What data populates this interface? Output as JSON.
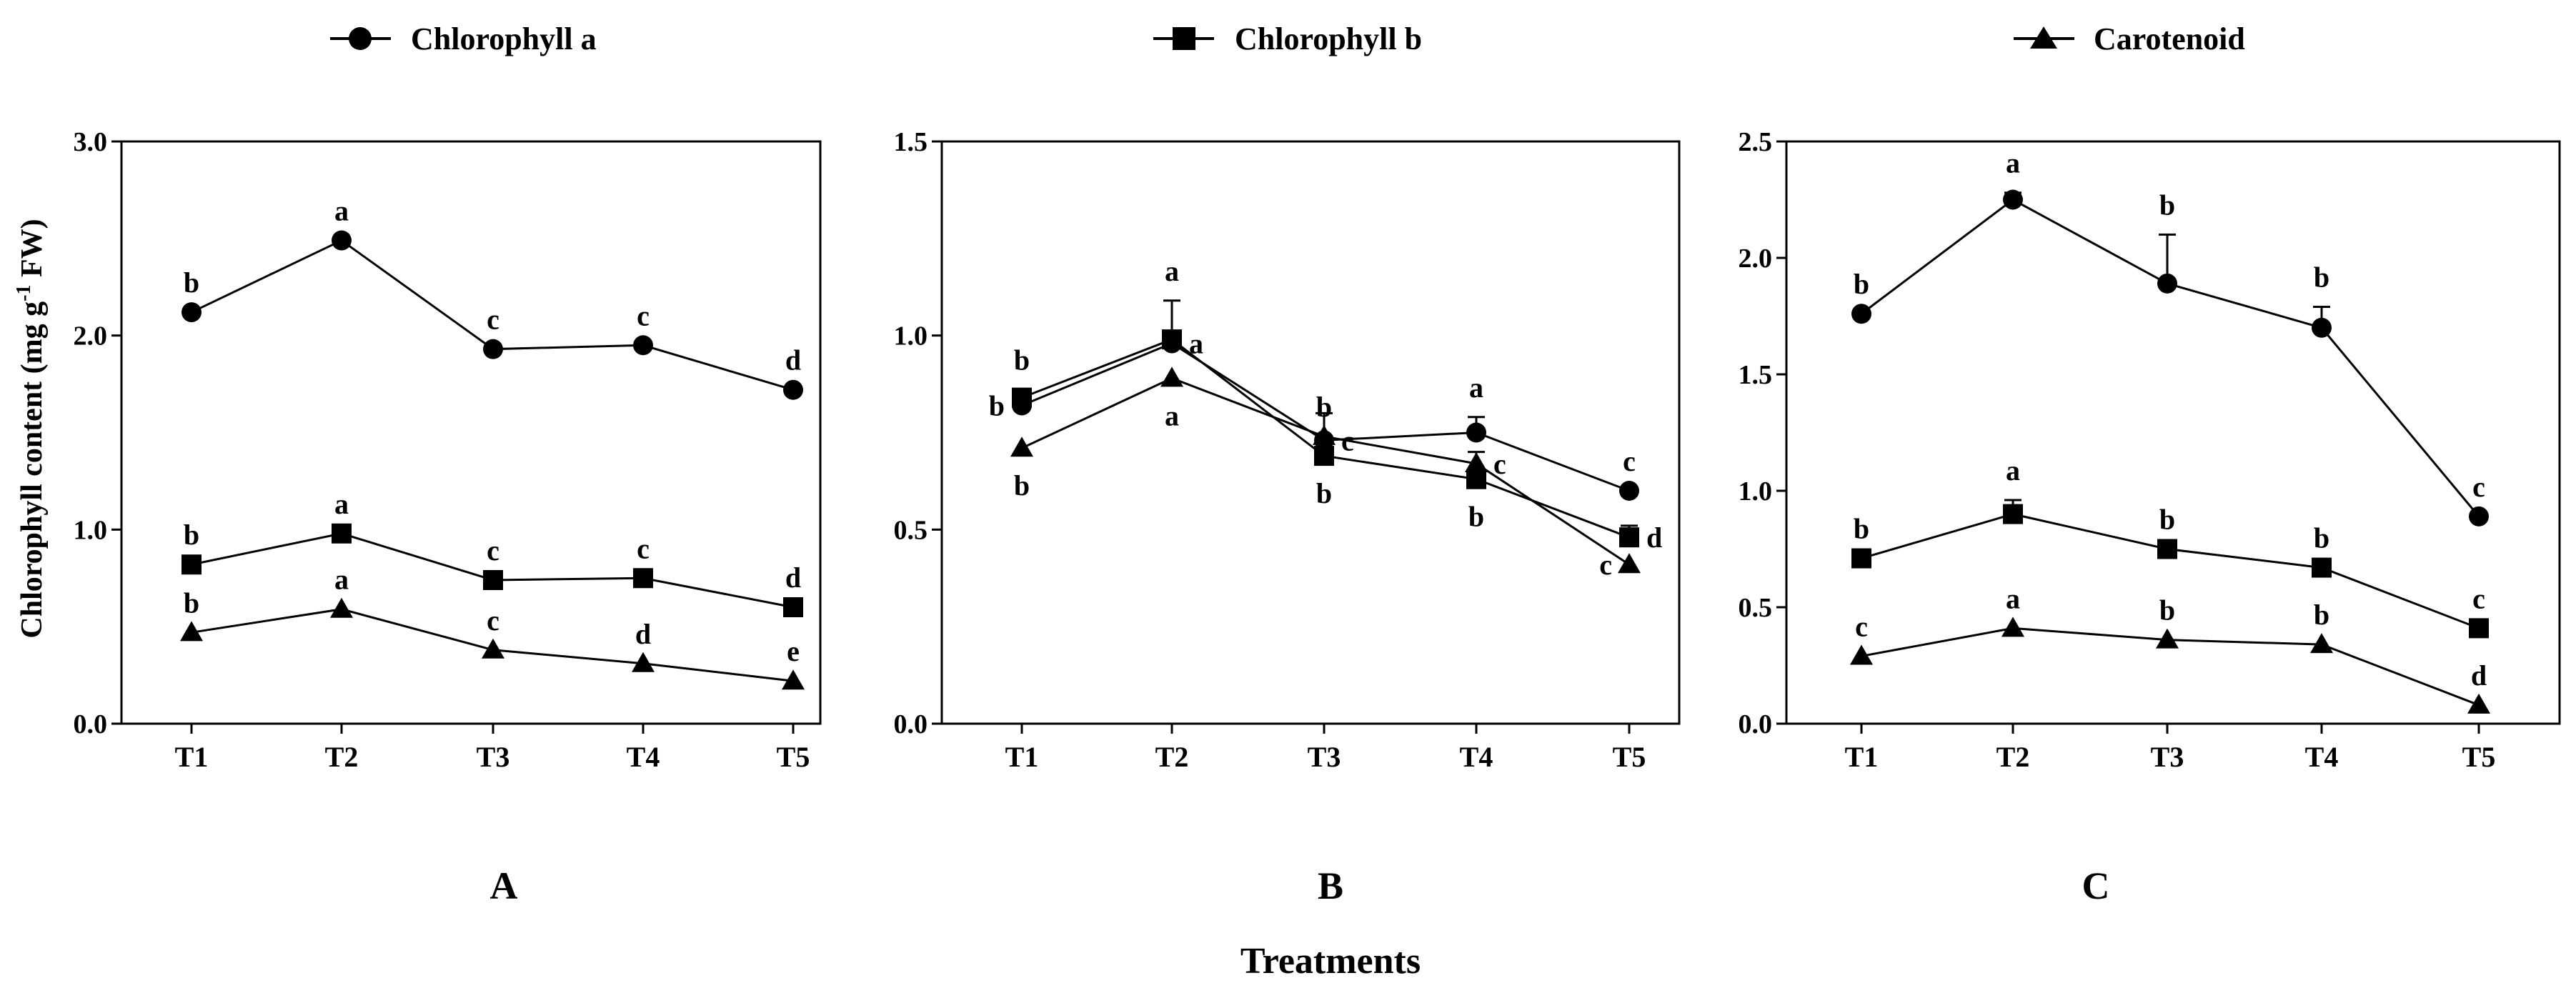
{
  "legend": [
    {
      "name": "Chlorophyll a",
      "marker": "circle"
    },
    {
      "name": "Chlorophyll b",
      "marker": "square"
    },
    {
      "name": "Carotenoid",
      "marker": "triangle"
    }
  ],
  "ylabel_main": "Chlorophyll content (mg g",
  "ylabel_sup": "-1",
  "ylabel_tail": " FW)",
  "xlabel": "Treatments",
  "chart_data": [
    {
      "type": "line",
      "panel": "A",
      "categories": [
        "T1",
        "T2",
        "T3",
        "T4",
        "T5"
      ],
      "ylim": [
        0,
        3.0
      ],
      "yticks": [
        "0.0",
        "1.0",
        "2.0",
        "3.0"
      ],
      "ytick_values": [
        0,
        1,
        2,
        3
      ],
      "series": [
        {
          "name": "Chlorophyll a",
          "marker": "circle",
          "values": [
            2.12,
            2.49,
            1.93,
            1.95,
            1.72
          ],
          "errors": [
            0,
            0,
            0,
            0,
            0
          ],
          "letters": [
            "b",
            "a",
            "c",
            "c",
            "d"
          ],
          "letter_pos": [
            "above",
            "above",
            "above",
            "above",
            "above"
          ]
        },
        {
          "name": "Chlorophyll b",
          "marker": "square",
          "values": [
            0.82,
            0.98,
            0.74,
            0.75,
            0.6
          ],
          "errors": [
            0,
            0,
            0,
            0,
            0
          ],
          "letters": [
            "b",
            "a",
            "c",
            "c",
            "d"
          ],
          "letter_pos": [
            "above",
            "above",
            "above",
            "above",
            "above"
          ]
        },
        {
          "name": "Carotenoid",
          "marker": "triangle",
          "values": [
            0.47,
            0.59,
            0.38,
            0.31,
            0.22
          ],
          "errors": [
            0,
            0,
            0,
            0,
            0
          ],
          "letters": [
            "b",
            "a",
            "c",
            "d",
            "e"
          ],
          "letter_pos": [
            "above",
            "above",
            "above",
            "above",
            "above"
          ]
        }
      ]
    },
    {
      "type": "line",
      "panel": "B",
      "categories": [
        "T1",
        "T2",
        "T3",
        "T4",
        "T5"
      ],
      "ylim": [
        0,
        1.5
      ],
      "yticks": [
        "0.0",
        "0.5",
        "1.0",
        "1.5"
      ],
      "ytick_values": [
        0,
        0.5,
        1.0,
        1.5
      ],
      "series": [
        {
          "name": "Chlorophyll a",
          "marker": "circle",
          "values": [
            0.82,
            0.98,
            0.73,
            0.75,
            0.6
          ],
          "errors": [
            0,
            0,
            0.07,
            0.04,
            0
          ],
          "letters": [
            "b",
            "a",
            "c",
            "a",
            "c"
          ],
          "letter_pos": [
            "left",
            "right",
            "right",
            "above",
            "above"
          ]
        },
        {
          "name": "Chlorophyll b",
          "marker": "square",
          "values": [
            0.84,
            0.99,
            0.69,
            0.63,
            0.48
          ],
          "errors": [
            0.02,
            0.1,
            0,
            0,
            0.03
          ],
          "letters": [
            "b",
            "a",
            "b",
            "b",
            "d"
          ],
          "letter_pos": [
            "above",
            "above",
            "below",
            "below",
            "right"
          ]
        },
        {
          "name": "Carotenoid",
          "marker": "triangle",
          "values": [
            0.71,
            0.89,
            0.74,
            0.67,
            0.41
          ],
          "errors": [
            0,
            0,
            0,
            0.03,
            0
          ],
          "letters": [
            "b",
            "a",
            "b",
            "c",
            "c"
          ],
          "letter_pos": [
            "below",
            "below",
            "above",
            "right",
            "left"
          ]
        }
      ]
    },
    {
      "type": "line",
      "panel": "C",
      "categories": [
        "T1",
        "T2",
        "T3",
        "T4",
        "T5"
      ],
      "ylim": [
        0,
        2.5
      ],
      "yticks": [
        "0.0",
        "0.5",
        "1.0",
        "1.5",
        "2.0",
        "2.5"
      ],
      "ytick_values": [
        0,
        0.5,
        1.0,
        1.5,
        2.0,
        2.5
      ],
      "series": [
        {
          "name": "Chlorophyll a",
          "marker": "circle",
          "values": [
            1.76,
            2.25,
            1.89,
            1.7,
            0.89
          ],
          "errors": [
            0,
            0.03,
            0.21,
            0.09,
            0
          ],
          "letters": [
            "b",
            "a",
            "b",
            "b",
            "c"
          ],
          "letter_pos": [
            "above",
            "above",
            "above",
            "above",
            "above"
          ]
        },
        {
          "name": "Chlorophyll b",
          "marker": "square",
          "values": [
            0.71,
            0.9,
            0.75,
            0.67,
            0.41
          ],
          "errors": [
            0,
            0.06,
            0,
            0,
            0
          ],
          "letters": [
            "b",
            "a",
            "b",
            "b",
            "c"
          ],
          "letter_pos": [
            "above",
            "above",
            "above",
            "above",
            "above"
          ]
        },
        {
          "name": "Carotenoid",
          "marker": "triangle",
          "values": [
            0.29,
            0.41,
            0.36,
            0.34,
            0.08
          ],
          "errors": [
            0,
            0,
            0,
            0,
            0
          ],
          "letters": [
            "c",
            "a",
            "b",
            "b",
            "d"
          ],
          "letter_pos": [
            "above",
            "above",
            "above",
            "above",
            "above"
          ]
        }
      ]
    }
  ]
}
